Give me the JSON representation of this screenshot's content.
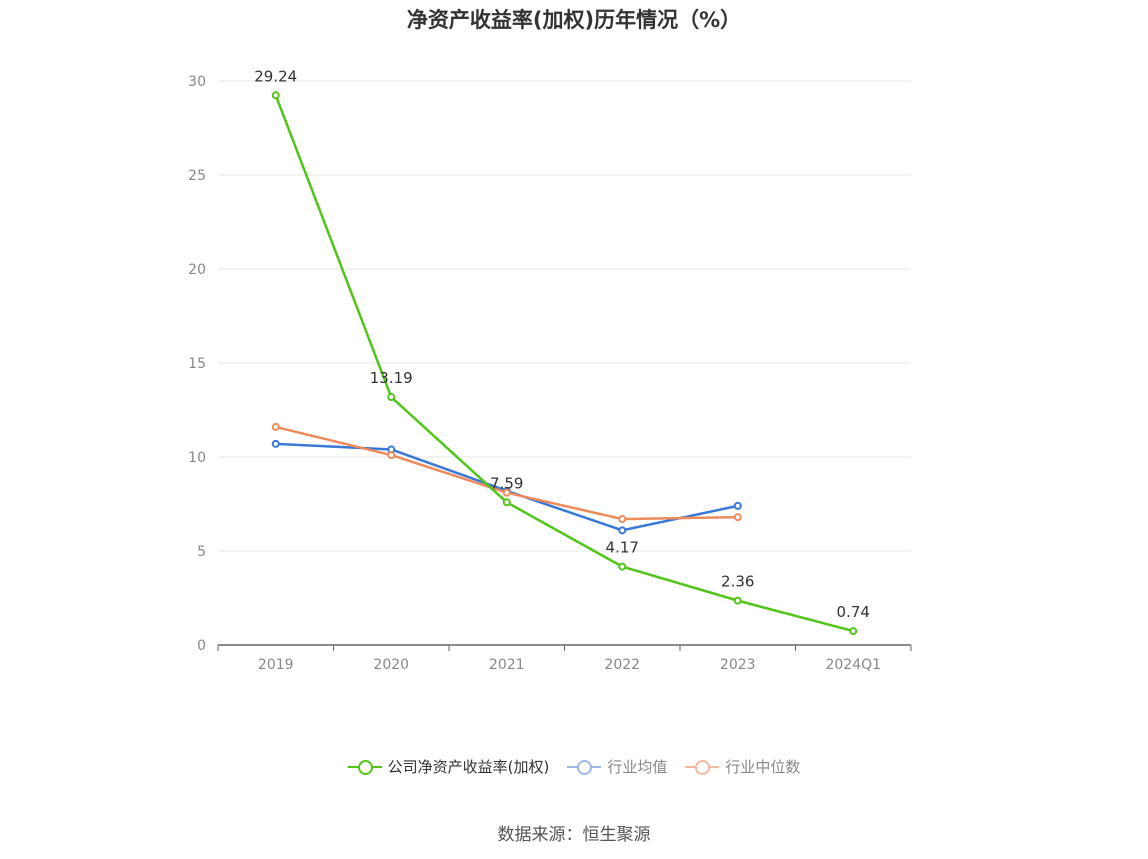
{
  "chart_data": {
    "type": "line",
    "title": "净资产收益率(加权)历年情况（%）",
    "categories": [
      "2019",
      "2020",
      "2021",
      "2022",
      "2023",
      "2024Q1"
    ],
    "ylim": [
      0,
      30
    ],
    "yticks": [
      0,
      5,
      10,
      15,
      20,
      25,
      30
    ],
    "grid": true,
    "legend_position": "bottom",
    "series": [
      {
        "name": "公司净资产收益率(加权)",
        "color": "#52c41a",
        "values": [
          29.24,
          13.19,
          7.59,
          4.17,
          2.36,
          0.74
        ],
        "labels": [
          "29.24",
          "13.19",
          "7.59",
          "4.17",
          "2.36",
          "0.74"
        ]
      },
      {
        "name": "行业均值",
        "color": "#3a78d8",
        "legend_color": "#9bb8ea",
        "values": [
          10.7,
          10.4,
          8.2,
          6.1,
          7.4,
          null
        ]
      },
      {
        "name": "行业中位数",
        "color": "#ef8a5a",
        "legend_color": "#f5b8a0",
        "values": [
          11.6,
          10.1,
          8.1,
          6.7,
          6.8,
          null
        ]
      }
    ]
  },
  "source": "数据来源：恒生聚源"
}
